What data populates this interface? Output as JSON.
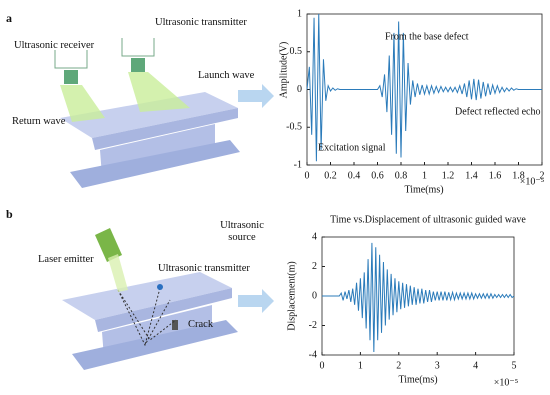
{
  "figure": {
    "panel_a": {
      "label": "a",
      "receiver": "Ultrasonic receiver",
      "transmitter": "Ultrasonic transmitter",
      "launch": "Launch wave",
      "return": "Return wave"
    },
    "panel_b": {
      "label": "b",
      "laser": "Laser emitter",
      "source": "Ultrasonic source",
      "transmitter": "Ultrasonic transmitter",
      "crack": "Crack"
    }
  },
  "chart_data": [
    {
      "type": "line",
      "x_label": "Time(ms)",
      "x_exponent": "×10⁻⁵",
      "y_label": "Amplitude(V)",
      "annotations": [
        "From the base defect",
        "Excitation signal",
        "Defect reflected echo"
      ],
      "xlim": [
        0,
        2
      ],
      "xticks": [
        0,
        0.2,
        0.4,
        0.6,
        0.8,
        1,
        1.2,
        1.4,
        1.6,
        1.8,
        2
      ],
      "ylim": [
        -1,
        1
      ],
      "yticks": [
        -1,
        -0.5,
        0,
        0.5,
        1
      ],
      "grid": false,
      "x": [
        0,
        0.02,
        0.04,
        0.06,
        0.08,
        0.1,
        0.12,
        0.14,
        0.16,
        0.18,
        0.2,
        0.22,
        0.24,
        0.26,
        0.28,
        0.3,
        0.32,
        0.34,
        0.36,
        0.38,
        0.4,
        0.42,
        0.44,
        0.46,
        0.48,
        0.5,
        0.52,
        0.54,
        0.56,
        0.58,
        0.6,
        0.62,
        0.64,
        0.66,
        0.68,
        0.7,
        0.72,
        0.74,
        0.76,
        0.78,
        0.8,
        0.82,
        0.84,
        0.86,
        0.88,
        0.9,
        0.92,
        0.94,
        0.96,
        0.98,
        1,
        1.02,
        1.04,
        1.06,
        1.08,
        1.1,
        1.12,
        1.14,
        1.16,
        1.18,
        1.2,
        1.22,
        1.24,
        1.26,
        1.28,
        1.3,
        1.32,
        1.34,
        1.36,
        1.38,
        1.4,
        1.42,
        1.44,
        1.46,
        1.48,
        1.5,
        1.52,
        1.54,
        1.56,
        1.58,
        1.6,
        1.62,
        1.64,
        1.66,
        1.68,
        1.7,
        1.72,
        1.74,
        1.76,
        1.78,
        1.8,
        1.82,
        1.84,
        1.86,
        1.88,
        1.9,
        1.92,
        1.94,
        1.96,
        1.98,
        2
      ],
      "series": [
        {
          "color": "#2b7bba",
          "values": [
            0,
            0.3,
            -0.6,
            0.95,
            -0.95,
            1,
            -0.8,
            0.4,
            -0.15,
            0.05,
            -0.02,
            0.02,
            -0.01,
            0.01,
            0,
            0,
            0,
            0,
            0,
            0,
            0,
            0,
            0,
            0,
            0,
            0,
            0,
            0,
            0,
            0,
            0,
            0.05,
            -0.1,
            0.2,
            -0.3,
            0.45,
            -0.6,
            0.75,
            -0.85,
            0.9,
            -0.9,
            0.75,
            -0.55,
            0.35,
            -0.2,
            0.12,
            -0.1,
            0.08,
            -0.07,
            0.06,
            -0.06,
            0.05,
            -0.06,
            0.05,
            -0.05,
            0.04,
            -0.04,
            0.04,
            -0.03,
            0.03,
            -0.03,
            0.03,
            -0.03,
            0.03,
            -0.04,
            0.05,
            -0.06,
            0.08,
            -0.1,
            0.12,
            -0.13,
            0.14,
            -0.14,
            0.13,
            -0.12,
            0.1,
            -0.09,
            0.08,
            -0.07,
            0.06,
            -0.05,
            0.05,
            -0.04,
            0.03,
            -0.03,
            0.02,
            -0.02,
            0.02,
            -0.01,
            0.01,
            0,
            0,
            0,
            0,
            0,
            0,
            0,
            0,
            0,
            0,
            0
          ]
        }
      ]
    },
    {
      "type": "line",
      "title": "Time vs.Displacement of ultrasonic guided wave",
      "x_label": "Time(ms)",
      "x_exponent": "×10⁻⁵",
      "y_label": "Displacement(m)",
      "xlim": [
        0,
        5
      ],
      "xticks": [
        0,
        1,
        2,
        3,
        4,
        5
      ],
      "ylim": [
        -4,
        4
      ],
      "yticks": [
        -4,
        -2,
        0,
        2,
        4
      ],
      "grid": false,
      "x": [
        0,
        0.05,
        0.1,
        0.15,
        0.2,
        0.25,
        0.3,
        0.35,
        0.4,
        0.45,
        0.5,
        0.55,
        0.6,
        0.65,
        0.7,
        0.75,
        0.8,
        0.85,
        0.9,
        0.95,
        1,
        1.05,
        1.1,
        1.15,
        1.2,
        1.25,
        1.3,
        1.35,
        1.4,
        1.45,
        1.5,
        1.55,
        1.6,
        1.65,
        1.7,
        1.75,
        1.8,
        1.85,
        1.9,
        1.95,
        2,
        2.05,
        2.1,
        2.15,
        2.2,
        2.25,
        2.3,
        2.35,
        2.4,
        2.45,
        2.5,
        2.55,
        2.6,
        2.65,
        2.7,
        2.75,
        2.8,
        2.85,
        2.9,
        2.95,
        3,
        3.05,
        3.1,
        3.15,
        3.2,
        3.25,
        3.3,
        3.35,
        3.4,
        3.45,
        3.5,
        3.55,
        3.6,
        3.65,
        3.7,
        3.75,
        3.8,
        3.85,
        3.9,
        3.95,
        4,
        4.05,
        4.1,
        4.15,
        4.2,
        4.25,
        4.3,
        4.35,
        4.4,
        4.45,
        4.5,
        4.55,
        4.6,
        4.65,
        4.7,
        4.75,
        4.8,
        4.85,
        4.9,
        4.95,
        5
      ],
      "series": [
        {
          "color": "#2b7bba",
          "values": [
            0,
            0,
            0,
            0,
            0,
            0,
            0,
            0,
            0,
            0,
            0.2,
            -0.3,
            0.3,
            -0.2,
            0.4,
            -0.4,
            0.5,
            -0.6,
            0.9,
            -1,
            1.2,
            -1.5,
            1.6,
            -2.2,
            2.5,
            -3,
            3.6,
            -3.8,
            3.3,
            -3,
            2.8,
            -2.5,
            2.3,
            -2,
            1.8,
            -1.6,
            1.5,
            -1.3,
            1.2,
            -1.1,
            1,
            -0.9,
            0.9,
            -0.8,
            0.8,
            -0.7,
            0.7,
            -0.6,
            0.6,
            -0.6,
            0.5,
            -0.5,
            0.5,
            -0.5,
            0.4,
            -0.4,
            0.4,
            -0.4,
            0.3,
            -0.3,
            0.3,
            -0.3,
            0.3,
            -0.3,
            0.3,
            -0.3,
            0.25,
            -0.25,
            0.25,
            -0.25,
            0.2,
            -0.2,
            0.2,
            -0.2,
            0.2,
            -0.2,
            0.2,
            -0.2,
            0.2,
            -0.2,
            0.15,
            -0.15,
            0.15,
            -0.15,
            0.15,
            -0.15,
            0.15,
            -0.15,
            0.15,
            -0.15,
            0.1,
            -0.1,
            0.1,
            -0.1,
            0.1,
            -0.1,
            0.1,
            -0.1,
            0.1,
            -0.1,
            0
          ]
        }
      ]
    }
  ]
}
